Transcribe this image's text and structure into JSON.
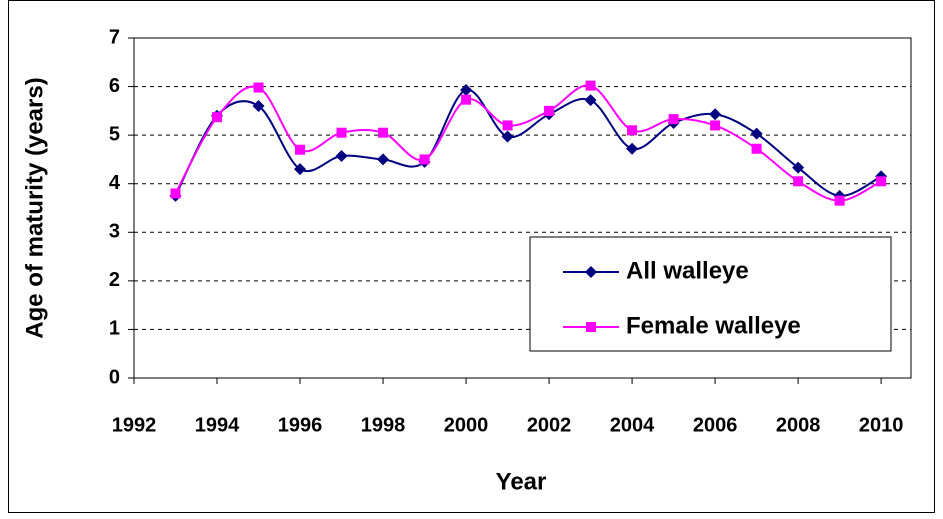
{
  "chart_data": {
    "type": "line",
    "x_label": "Year",
    "y_label": "Age of maturity (years)",
    "x": [
      1993,
      1994,
      1995,
      1996,
      1997,
      1998,
      1999,
      2000,
      2001,
      2002,
      2003,
      2004,
      2005,
      2006,
      2007,
      2008,
      2009,
      2010
    ],
    "series": [
      {
        "name": "All walleye",
        "color": "#000080",
        "marker": "diamond",
        "values": [
          3.75,
          5.4,
          5.6,
          4.3,
          4.57,
          4.5,
          4.45,
          5.93,
          4.97,
          5.43,
          5.72,
          4.72,
          5.25,
          5.43,
          5.03,
          4.33,
          3.75,
          4.15
        ]
      },
      {
        "name": "Female walleye",
        "color": "#FF00FF",
        "marker": "square",
        "values": [
          3.8,
          5.37,
          5.98,
          4.7,
          5.05,
          5.05,
          4.5,
          5.73,
          5.2,
          5.5,
          6.02,
          5.1,
          5.33,
          5.2,
          4.72,
          4.05,
          3.65,
          4.05
        ]
      }
    ],
    "xlim": [
      1992,
      2010.72
    ],
    "xticks": [
      1992,
      1994,
      1996,
      1998,
      2000,
      2002,
      2004,
      2006,
      2008,
      2010
    ],
    "ylim": [
      0,
      7
    ],
    "yticks": [
      0,
      1,
      2,
      3,
      4,
      5,
      6,
      7
    ],
    "grid": true,
    "smooth": true,
    "legend": "lower right"
  }
}
